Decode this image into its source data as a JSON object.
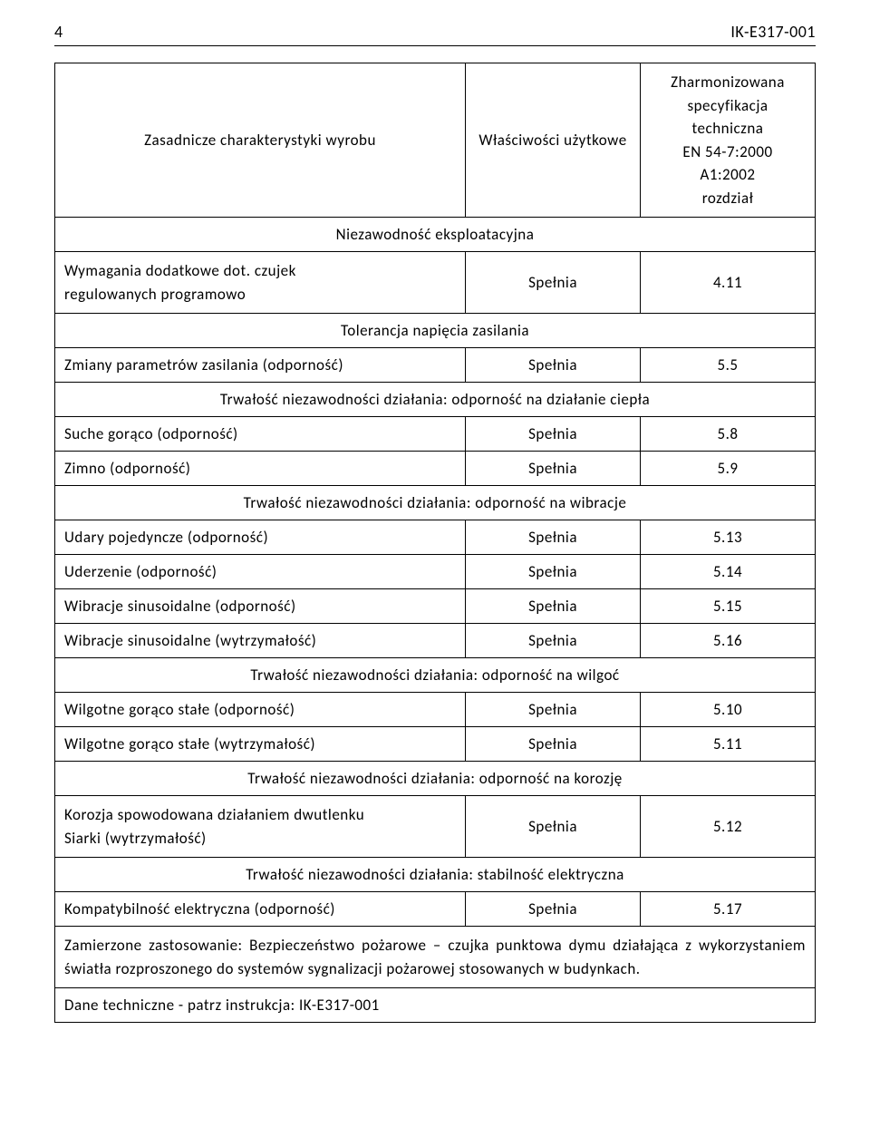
{
  "header": {
    "page_number": "4",
    "doc_code": "IK-E317-001"
  },
  "table": {
    "head": {
      "col1": "Zasadnicze charakterystyki wyrobu",
      "col2": "Właściwości użytkowe",
      "col3_lines": [
        "Zharmonizowana",
        "specyfikacja",
        "techniczna",
        "EN 54-7:2000",
        "A1:2002",
        "rozdział"
      ]
    },
    "section1": "Niezawodność eksploatacyjna",
    "row1": {
      "c1_l1": "Wymagania dodatkowe dot. czujek",
      "c1_l2": "regulowanych programowo",
      "c2": "Spełnia",
      "c3": "4.11"
    },
    "section2": "Tolerancja napięcia zasilania",
    "row2": {
      "c1": "Zmiany parametrów zasilania (odporność)",
      "c2": "Spełnia",
      "c3": "5.5"
    },
    "section3": "Trwałość niezawodności działania: odporność na działanie ciepła",
    "row3": {
      "c1": "Suche gorąco (odporność)",
      "c2": "Spełnia",
      "c3": "5.8"
    },
    "row4": {
      "c1": "Zimno (odporność)",
      "c2": "Spełnia",
      "c3": "5.9"
    },
    "section4": "Trwałość niezawodności działania: odporność na wibracje",
    "row5": {
      "c1": "Udary pojedyncze (odporność)",
      "c2": "Spełnia",
      "c3": "5.13"
    },
    "row6": {
      "c1": "Uderzenie (odporność)",
      "c2": "Spełnia",
      "c3": "5.14"
    },
    "row7": {
      "c1": "Wibracje sinusoidalne (odporność)",
      "c2": "Spełnia",
      "c3": "5.15"
    },
    "row8": {
      "c1": "Wibracje sinusoidalne (wytrzymałość)",
      "c2": "Spełnia",
      "c3": "5.16"
    },
    "section5": "Trwałość niezawodności działania: odporność na wilgoć",
    "row9": {
      "c1": "Wilgotne gorąco stałe (odporność)",
      "c2": "Spełnia",
      "c3": "5.10"
    },
    "row10": {
      "c1": "Wilgotne gorąco stałe (wytrzymałość)",
      "c2": "Spełnia",
      "c3": "5.11"
    },
    "section6": "Trwałość niezawodności działania: odporność na korozję",
    "row11": {
      "c1_l1": "Korozja spowodowana działaniem dwutlenku",
      "c1_l2": "Siarki (wytrzymałość)",
      "c2": "Spełnia",
      "c3": "5.12"
    },
    "section7": "Trwałość niezawodności działania: stabilność elektryczna",
    "row12": {
      "c1": "Kompatybilność elektryczna (odporność)",
      "c2": "Spełnia",
      "c3": "5.17"
    },
    "intended_use": "Zamierzone zastosowanie:  Bezpieczeństwo pożarowe – czujka punktowa dymu działająca z wykorzystaniem światła rozproszonego do systemów sygnalizacji pożarowej stosowanych w budynkach.",
    "tech_data": "Dane techniczne - patrz instrukcja: IK-E317-001"
  }
}
